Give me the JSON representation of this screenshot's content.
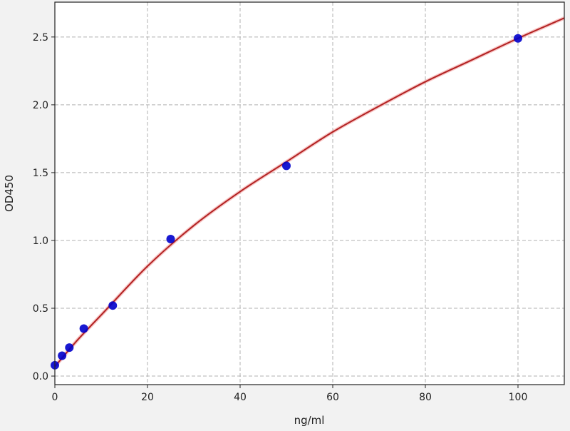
{
  "chart_data": {
    "type": "scatter",
    "title": "",
    "xlabel": "ng/ml",
    "ylabel": "OD450",
    "xlim": [
      0,
      110
    ],
    "ylim": [
      -0.063,
      2.757
    ],
    "xticks": [
      0,
      20,
      40,
      60,
      80,
      100
    ],
    "yticks": [
      0.0,
      0.5,
      1.0,
      1.5,
      2.0,
      2.5
    ],
    "xtick_labels": [
      "0",
      "20",
      "40",
      "60",
      "80",
      "100"
    ],
    "ytick_labels": [
      "0.0",
      "0.5",
      "1.0",
      "1.5",
      "2.0",
      "2.5"
    ],
    "grid": true,
    "series": [
      {
        "kind": "points",
        "color": "#0000cc",
        "x": [
          0,
          1.56,
          3.125,
          6.25,
          12.5,
          25,
          50,
          100
        ],
        "y": [
          0.08,
          0.15,
          0.21,
          0.35,
          0.52,
          1.01,
          1.55,
          2.49
        ]
      },
      {
        "kind": "fit-curve",
        "color": "#b22222",
        "x": [
          0,
          5,
          10,
          20,
          30,
          40,
          50,
          60,
          70,
          80,
          90,
          100,
          110
        ],
        "y": [
          0.07,
          0.27,
          0.45,
          0.81,
          1.11,
          1.36,
          1.58,
          1.8,
          1.99,
          2.17,
          2.33,
          2.49,
          2.64
        ]
      }
    ]
  }
}
